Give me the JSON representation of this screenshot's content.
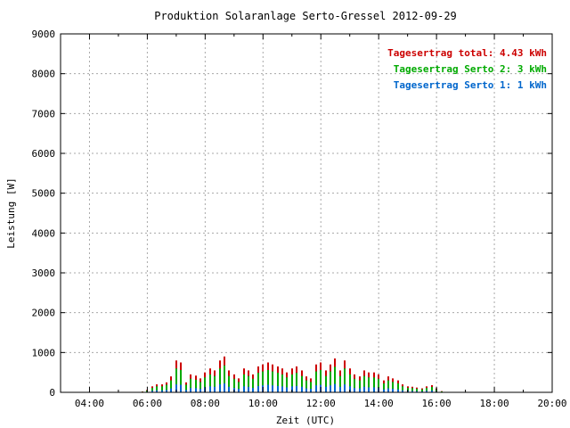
{
  "chart_data": {
    "type": "bar",
    "title": "Produktion Solaranlage Serto-Gressel 2012-09-29",
    "xlabel": "Zeit (UTC)",
    "ylabel": "Leistung [W]",
    "xlim": [
      "03:00",
      "20:00"
    ],
    "ylim": [
      0,
      9000
    ],
    "grid": true,
    "legend_position": "top-right",
    "x_ticks": [
      "04:00",
      "06:00",
      "08:00",
      "10:00",
      "12:00",
      "14:00",
      "16:00",
      "18:00",
      "20:00"
    ],
    "y_ticks": [
      0,
      1000,
      2000,
      3000,
      4000,
      5000,
      6000,
      7000,
      8000,
      9000
    ],
    "legend": [
      {
        "label": "Tagesertrag total:",
        "value": "4.43 kWh",
        "color": "#cc0000"
      },
      {
        "label": "Tagesertrag Serto 2:",
        "value": "3 kWh",
        "color": "#00aa00"
      },
      {
        "label": "Tagesertrag Serto 1:",
        "value": "1 kWh",
        "color": "#0066cc"
      }
    ],
    "x": [
      "05:50",
      "06:00",
      "06:10",
      "06:20",
      "06:30",
      "06:40",
      "06:50",
      "07:00",
      "07:10",
      "07:20",
      "07:30",
      "07:40",
      "07:50",
      "08:00",
      "08:10",
      "08:20",
      "08:30",
      "08:40",
      "08:50",
      "09:00",
      "09:10",
      "09:20",
      "09:30",
      "09:40",
      "09:50",
      "10:00",
      "10:10",
      "10:20",
      "10:30",
      "10:40",
      "10:50",
      "11:00",
      "11:10",
      "11:20",
      "11:30",
      "11:40",
      "11:50",
      "12:00",
      "12:10",
      "12:20",
      "12:30",
      "12:40",
      "12:50",
      "13:00",
      "13:10",
      "13:20",
      "13:30",
      "13:40",
      "13:50",
      "14:00",
      "14:10",
      "14:20",
      "14:30",
      "14:40",
      "14:50",
      "15:00",
      "15:10",
      "15:20",
      "15:30",
      "15:40",
      "15:50",
      "16:00",
      "16:10",
      "16:20"
    ],
    "series": [
      {
        "name": "total",
        "color": "#cc0000",
        "values": [
          20,
          60,
          150,
          200,
          200,
          250,
          400,
          800,
          750,
          250,
          450,
          420,
          350,
          500,
          600,
          550,
          800,
          900,
          550,
          450,
          350,
          600,
          550,
          450,
          650,
          700,
          750,
          700,
          650,
          600,
          500,
          600,
          650,
          550,
          400,
          350,
          700,
          750,
          550,
          700,
          850,
          550,
          800,
          600,
          450,
          400,
          550,
          500,
          500,
          450,
          300,
          400,
          350,
          300,
          200,
          150,
          140,
          120,
          100,
          150,
          180,
          100,
          30,
          10
        ]
      },
      {
        "name": "Serto 2",
        "color": "#00aa00",
        "values": [
          15,
          45,
          110,
          150,
          150,
          190,
          300,
          600,
          560,
          190,
          340,
          315,
          260,
          375,
          450,
          410,
          600,
          675,
          410,
          340,
          260,
          450,
          410,
          340,
          490,
          525,
          560,
          525,
          490,
          450,
          375,
          450,
          490,
          410,
          300,
          260,
          525,
          560,
          410,
          525,
          640,
          410,
          600,
          450,
          340,
          300,
          410,
          375,
          375,
          340,
          225,
          300,
          260,
          225,
          150,
          110,
          105,
          90,
          75,
          110,
          135,
          75,
          22,
          7
        ]
      },
      {
        "name": "Serto 1",
        "color": "#0066cc",
        "values": [
          5,
          15,
          40,
          50,
          50,
          60,
          100,
          200,
          190,
          60,
          110,
          105,
          90,
          125,
          150,
          140,
          200,
          225,
          140,
          110,
          90,
          150,
          140,
          110,
          160,
          175,
          190,
          175,
          160,
          150,
          125,
          150,
          160,
          140,
          100,
          90,
          175,
          190,
          140,
          175,
          210,
          140,
          200,
          150,
          110,
          100,
          140,
          125,
          125,
          110,
          75,
          100,
          90,
          75,
          50,
          40,
          35,
          30,
          25,
          40,
          45,
          25,
          8,
          3
        ]
      }
    ]
  }
}
